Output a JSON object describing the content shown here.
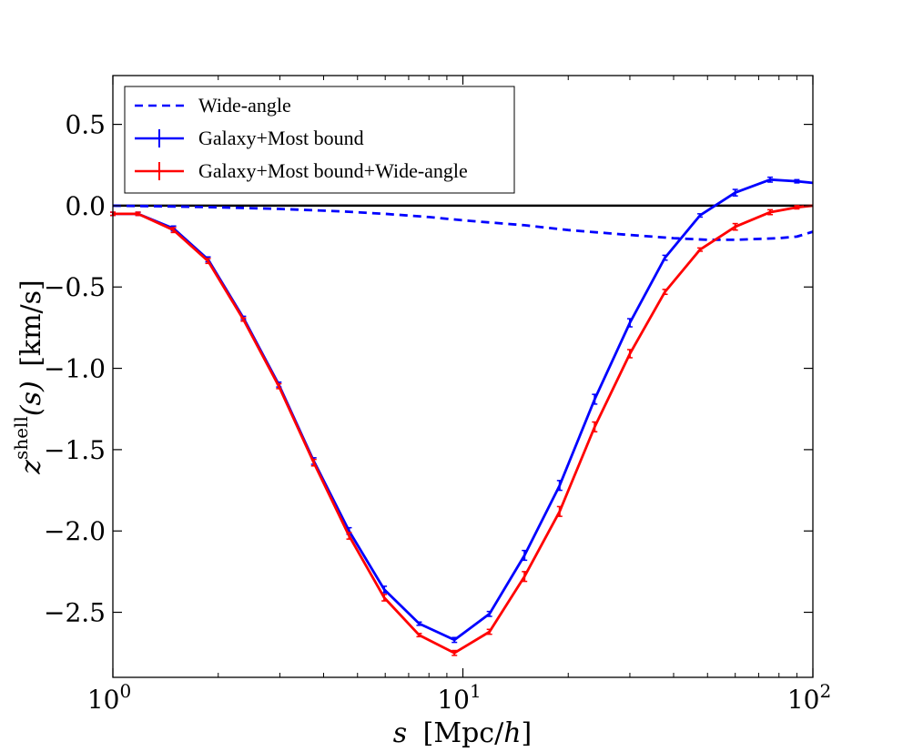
{
  "chart_data": {
    "type": "line",
    "title": "",
    "xscale": "log",
    "xlim": [
      1,
      100
    ],
    "ylim": [
      -2.9,
      0.8
    ],
    "x_ticks": [
      {
        "value": 1,
        "base": "10",
        "exp": "0"
      },
      {
        "value": 10,
        "base": "10",
        "exp": "1"
      },
      {
        "value": 100,
        "base": "10",
        "exp": "2"
      }
    ],
    "y_ticks": [
      {
        "value": 0.5,
        "label": "0.5"
      },
      {
        "value": 0.0,
        "label": "0.0"
      },
      {
        "value": -0.5,
        "label": "−0.5"
      },
      {
        "value": -1.0,
        "label": "−1.0"
      },
      {
        "value": -1.5,
        "label": "−1.5"
      },
      {
        "value": -2.0,
        "label": "−2.0"
      },
      {
        "value": -2.5,
        "label": "−2.5"
      }
    ],
    "xlabel": {
      "var": "s",
      "units": "[Mpc/",
      "var2": "h",
      "close": "]"
    },
    "ylabel": {
      "var": "z",
      "sup": "shell",
      "arg": "(s)",
      "units": "[km/s]"
    },
    "reference_line": {
      "y": 0.0,
      "color": "#000000"
    },
    "legend": {
      "position": "upper-left",
      "entries": [
        "Wide-angle",
        "Galaxy+Most bound",
        "Galaxy+Most bound+Wide-angle"
      ]
    },
    "series": [
      {
        "name": "Wide-angle",
        "color": "#0000ff",
        "style": "dashed",
        "x": [
          1.0,
          1.5,
          2.0,
          3.0,
          4.5,
          6.0,
          8.0,
          10.0,
          15.0,
          20.0,
          30.0,
          40.0,
          50.0,
          60.0,
          80.0,
          90.0,
          100.0
        ],
        "y": [
          0.0,
          -0.005,
          -0.01,
          -0.02,
          -0.035,
          -0.05,
          -0.07,
          -0.09,
          -0.12,
          -0.15,
          -0.18,
          -0.2,
          -0.21,
          -0.21,
          -0.2,
          -0.19,
          -0.16
        ]
      },
      {
        "name": "Galaxy+Most bound",
        "color": "#0000ff",
        "style": "solid",
        "x": [
          1.0,
          1.18,
          1.49,
          1.87,
          2.36,
          2.98,
          3.75,
          4.73,
          5.96,
          7.5,
          9.46,
          11.91,
          15.0,
          18.9,
          23.8,
          30.0,
          37.8,
          47.6,
          60.0,
          75.5,
          90.0,
          100.0
        ],
        "y": [
          -0.05,
          -0.05,
          -0.14,
          -0.33,
          -0.69,
          -1.1,
          -1.57,
          -2.0,
          -2.36,
          -2.57,
          -2.67,
          -2.51,
          -2.15,
          -1.72,
          -1.19,
          -0.72,
          -0.32,
          -0.06,
          0.08,
          0.16,
          0.15,
          0.14
        ],
        "err": [
          0.01,
          0.01,
          0.015,
          0.015,
          0.01,
          0.015,
          0.02,
          0.02,
          0.02,
          0.01,
          0.015,
          0.015,
          0.03,
          0.03,
          0.03,
          0.025,
          0.015,
          0.01,
          0.02,
          0.015,
          0.01,
          0.0
        ]
      },
      {
        "name": "Galaxy+Most bound+Wide-angle",
        "color": "#ff0000",
        "style": "solid",
        "x": [
          1.0,
          1.18,
          1.49,
          1.87,
          2.36,
          2.98,
          3.75,
          4.73,
          5.96,
          7.5,
          9.46,
          11.91,
          15.0,
          18.9,
          23.8,
          30.0,
          37.8,
          47.6,
          60.0,
          75.5,
          90.0,
          100.0
        ],
        "y": [
          -0.05,
          -0.05,
          -0.15,
          -0.34,
          -0.7,
          -1.11,
          -1.58,
          -2.03,
          -2.41,
          -2.64,
          -2.75,
          -2.62,
          -2.28,
          -1.88,
          -1.36,
          -0.91,
          -0.53,
          -0.27,
          -0.13,
          -0.04,
          -0.01,
          0.0
        ],
        "err": [
          0.01,
          0.01,
          0.015,
          0.015,
          0.01,
          0.015,
          0.02,
          0.02,
          0.02,
          0.01,
          0.015,
          0.015,
          0.03,
          0.03,
          0.03,
          0.025,
          0.015,
          0.01,
          0.02,
          0.015,
          0.01,
          0.0
        ]
      }
    ]
  }
}
